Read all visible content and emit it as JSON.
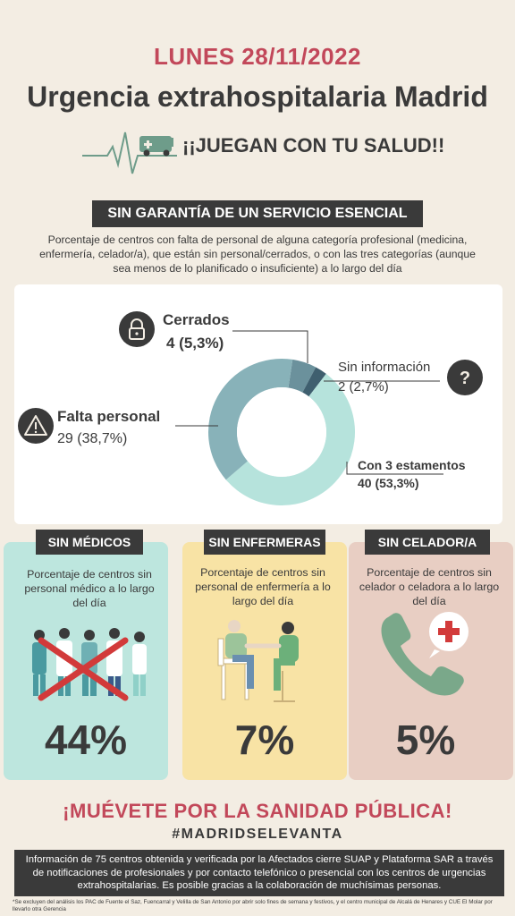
{
  "header": {
    "date": "LUNES 28/11/2022",
    "title": "Urgencia extrahospitalaria Madrid",
    "slogan": "¡¡JUEGAN CON TU SALUD!!"
  },
  "section": {
    "tag": "SIN GARANTÍA DE UN SERVICIO  ESENCIAL",
    "description": "Porcentaje de centros con falta de personal de alguna categoría profesional (medicina, enfermería, celador/a), que están sin personal/cerrados, o con las tres categorías (aunque sea menos de lo planificado o insuficiente) a lo largo del día"
  },
  "chart_data": {
    "type": "pie",
    "categories": [
      "Con 3 estamentos",
      "Falta personal",
      "Cerrados",
      "Sin información"
    ],
    "values": [
      40,
      29,
      4,
      2
    ],
    "value_labels": [
      "40 (53,3%)",
      "29 (38,7%)",
      "4 (5,3%)",
      "2 (2,7%)"
    ],
    "colors": [
      "#b6e3dc",
      "#88b2b9",
      "#6b919c",
      "#3f5f6f"
    ]
  },
  "cards": [
    {
      "tag": "SIN MÉDICOS",
      "description": "Porcentaje de centros sin personal médico a lo largo del día",
      "percent": "44%",
      "bg": "#bde6de"
    },
    {
      "tag": "SIN ENFERMERAS",
      "description": "Porcentaje de centros sin personal de enfermería a lo largo del día",
      "percent": "7%",
      "bg": "#f8e3a5"
    },
    {
      "tag": "SIN CELADOR/A",
      "description": "Porcentaje de centros sin celador o celadora a lo largo del día",
      "percent": "5%",
      "bg": "#e8cec3"
    }
  ],
  "footer": {
    "cta": "¡MUÉVETE POR LA SANIDAD PÚBLICA!",
    "hashtag": "#MADRIDSELEVANTA",
    "info": "Información de 75 centros obtenida y verificada por la Afectados cierre SUAP y Plataforma SAR a través de notificaciones de profesionales y por contacto telefónico o presencial con los centros de urgencias extrahospitalarias. Es posible gracias a la colaboración de muchísimas personas.",
    "note": "*Se excluyen del análisis los PAC de Fuente el Saz, Fuencarral y Velilla de San Antonio por abrir solo fines de semana y festivos, y el centro municipal de Alcalá de Henares y CUE El Molar por llevarlo otra Gerencia"
  },
  "colors": {
    "accent": "#c2485a",
    "dark": "#3a3a3a",
    "background": "#f3ede3"
  },
  "icons": [
    "heartbeat-ambulance-icon",
    "lock-icon",
    "question-icon",
    "warning-icon",
    "medical-staff-crossed-icon",
    "nurse-patient-icon",
    "phone-medical-cross-icon"
  ]
}
